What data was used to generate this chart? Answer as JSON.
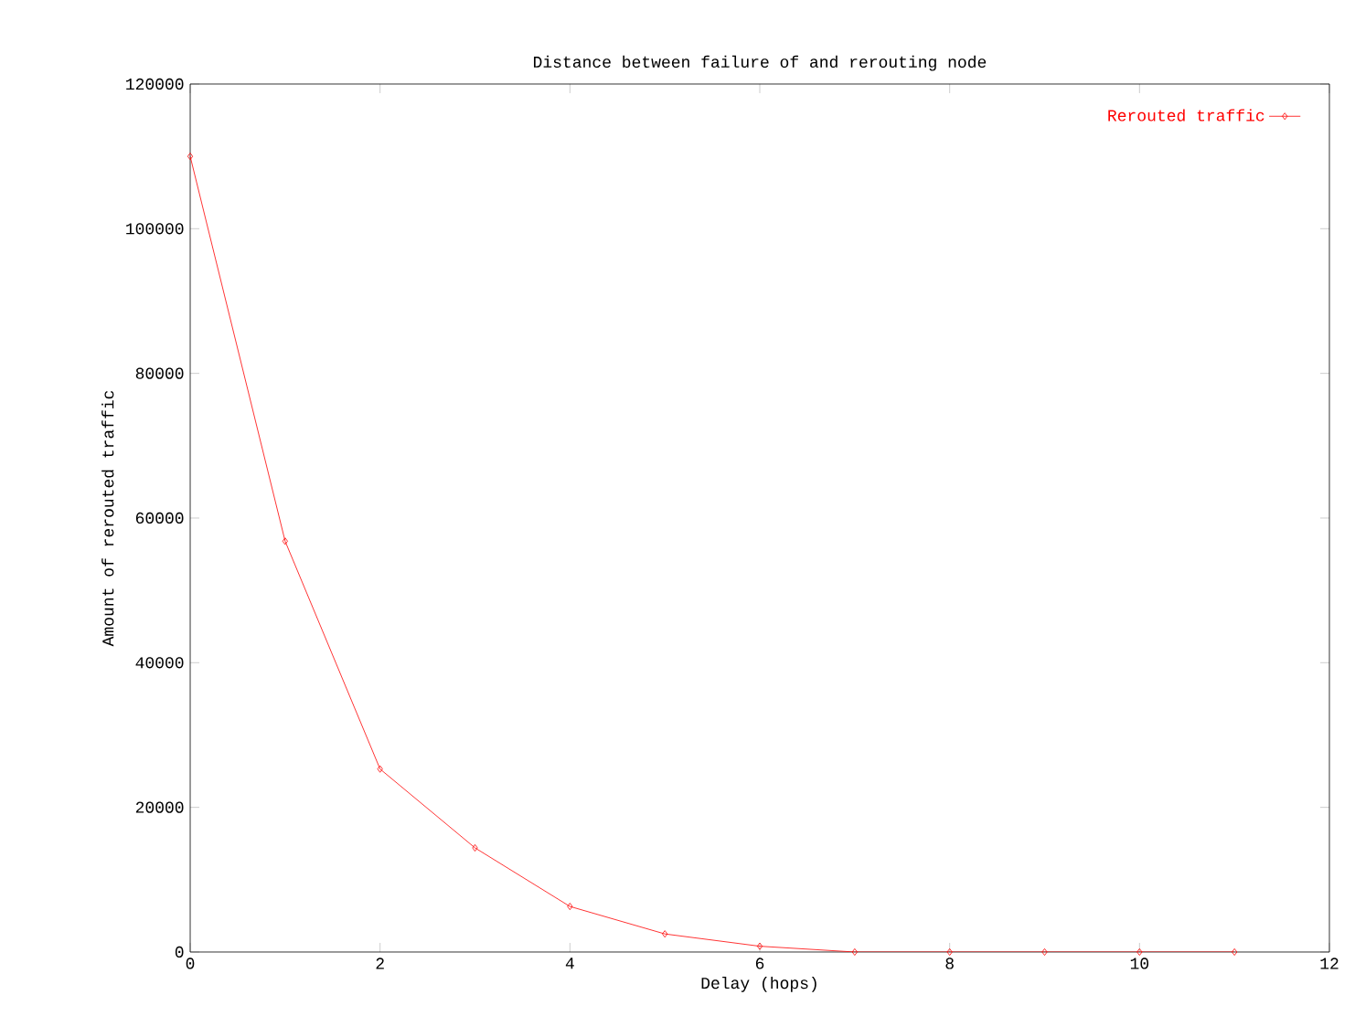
{
  "chart_data": {
    "type": "line",
    "title": "Distance between failure of and rerouting node",
    "xlabel": "Delay (hops)",
    "ylabel": "Amount of rerouted traffic",
    "x": [
      0,
      1,
      2,
      3,
      4,
      5,
      6,
      7,
      8,
      9,
      10,
      11
    ],
    "series": [
      {
        "name": "Rerouted traffic",
        "color": "#ff0000",
        "values": [
          110000,
          56800,
          25300,
          14400,
          6300,
          2500,
          800,
          0,
          0,
          0,
          0,
          0
        ]
      }
    ],
    "xlim": [
      0,
      12
    ],
    "ylim": [
      0,
      120000
    ],
    "xticks": [
      0,
      2,
      4,
      6,
      8,
      10,
      12
    ],
    "yticks": [
      0,
      20000,
      40000,
      60000,
      80000,
      100000,
      120000
    ],
    "legend": "top right",
    "marker": "diamond",
    "line_style": "solid"
  }
}
